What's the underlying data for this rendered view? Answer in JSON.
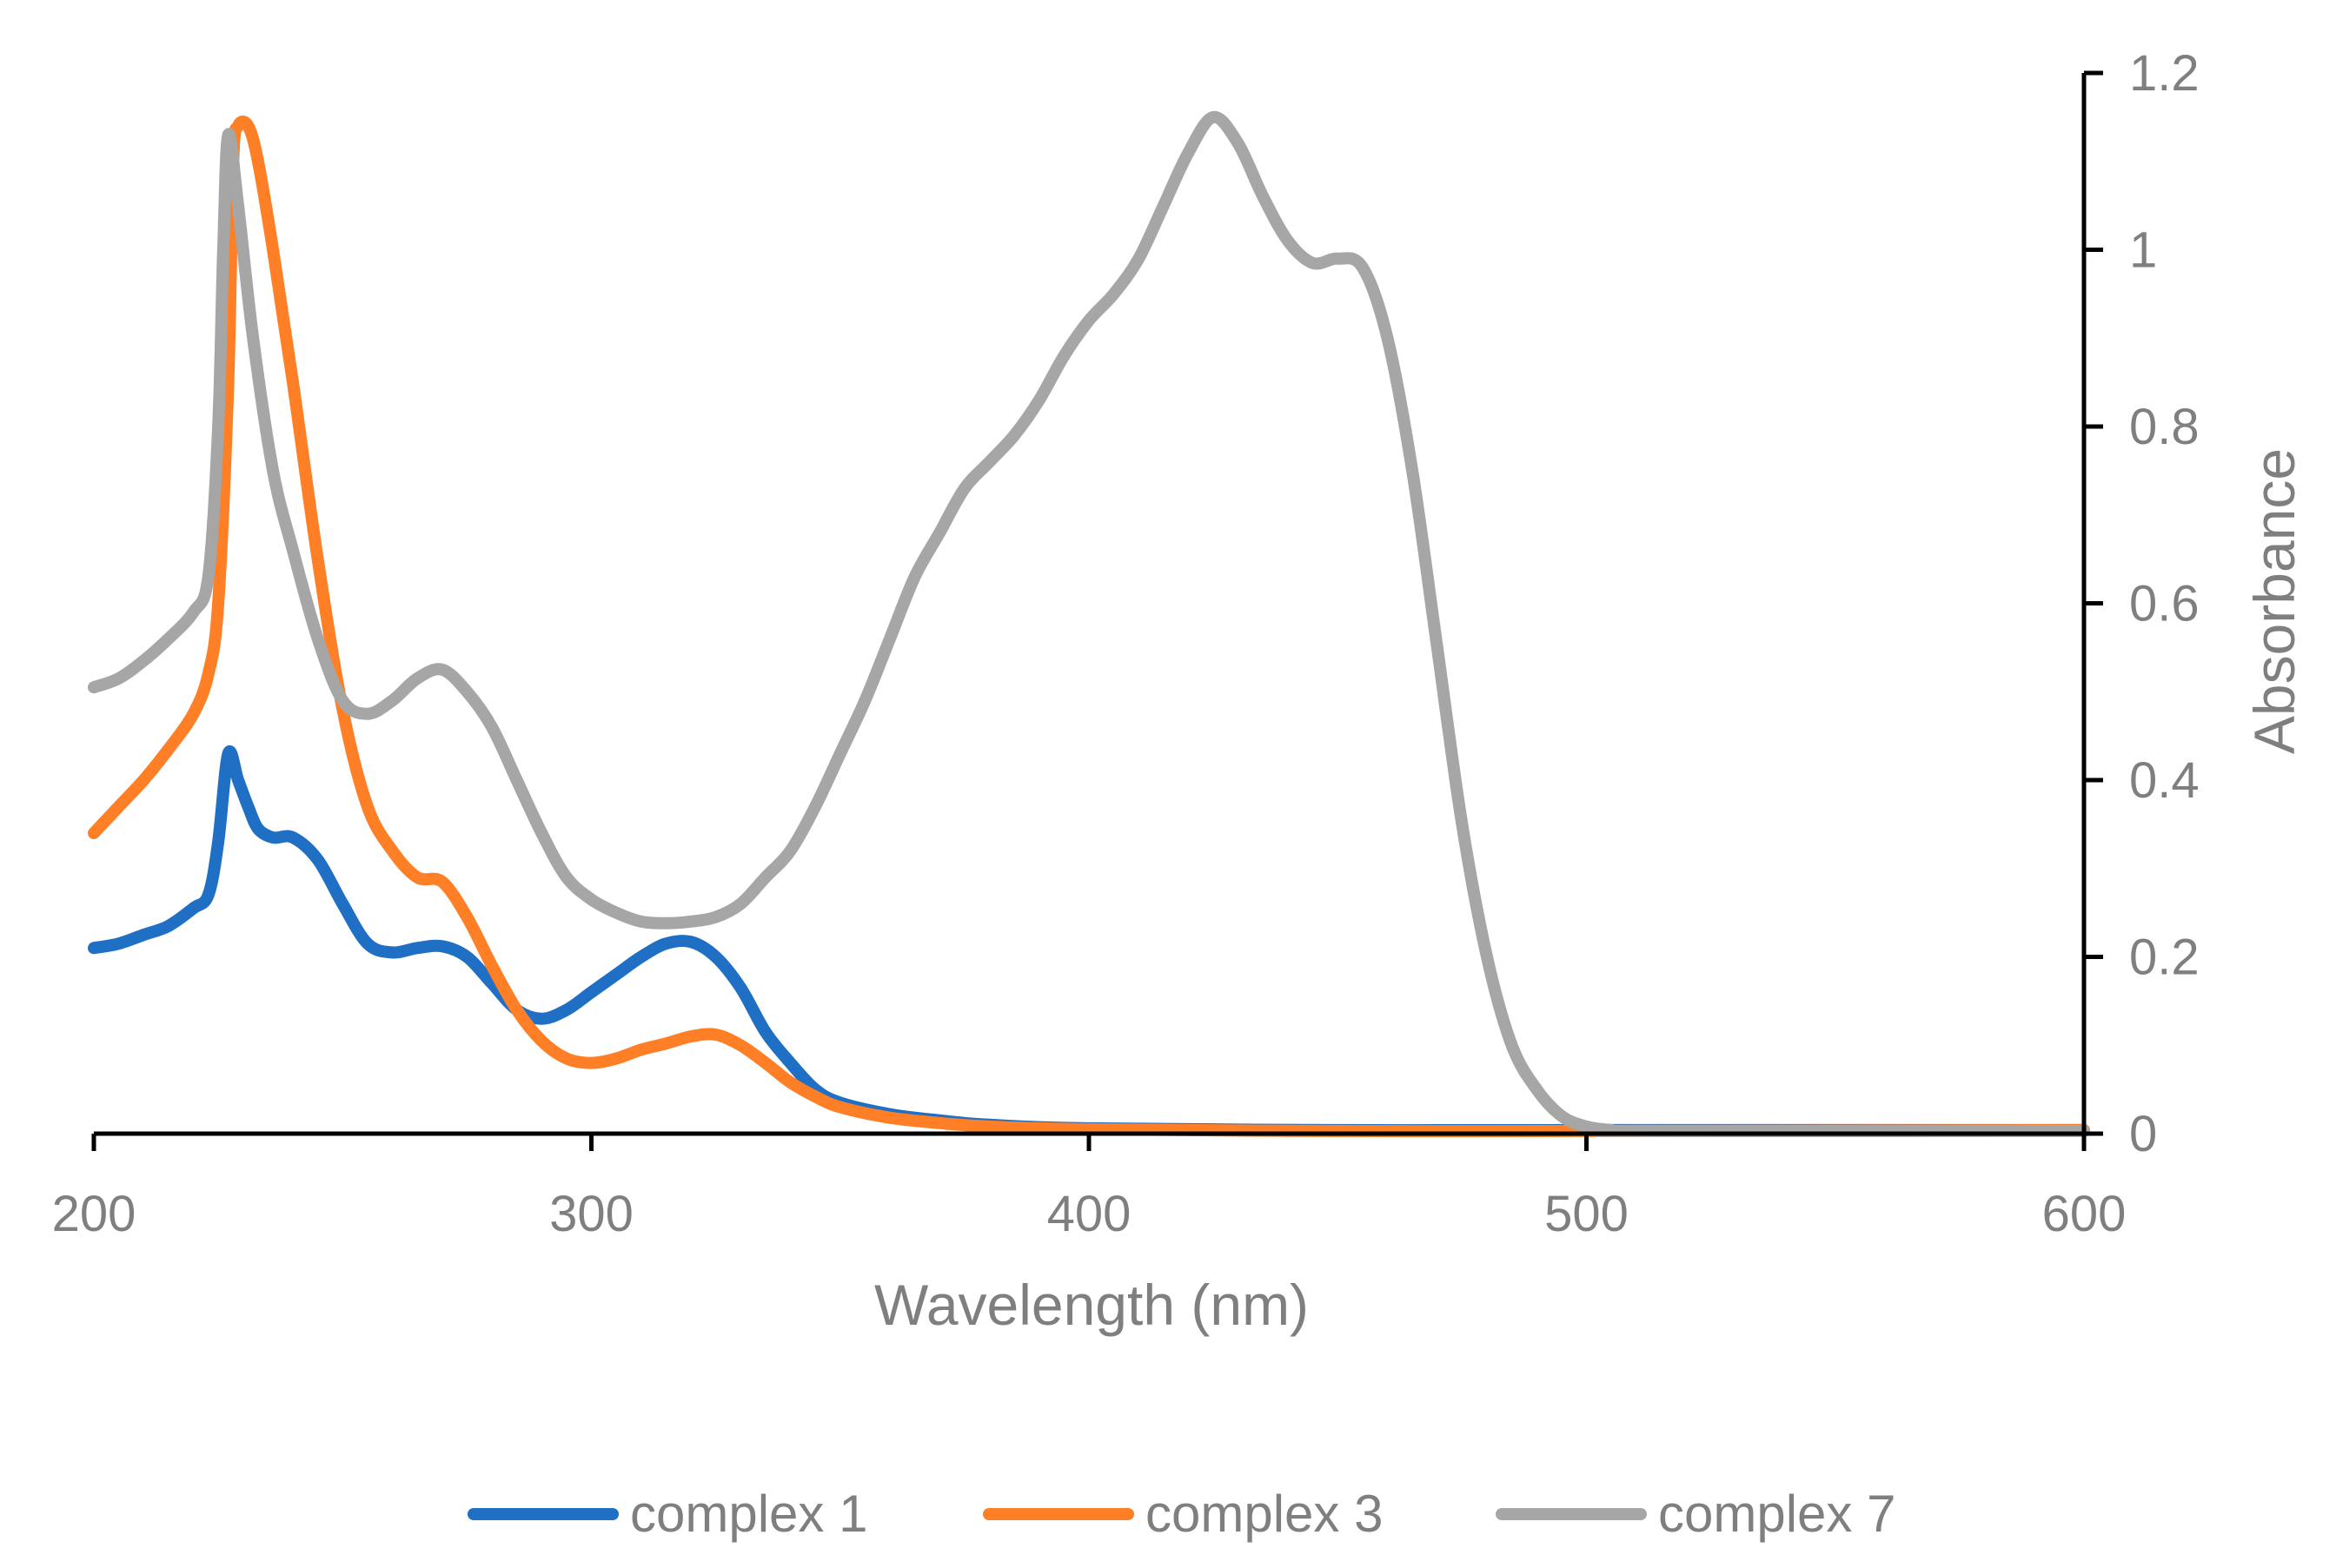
{
  "chart_data": {
    "type": "line",
    "title": "",
    "xlabel": "Wavelength (nm)",
    "ylabel": "Absorbance",
    "xlim": [
      200,
      600
    ],
    "ylim": [
      0,
      1.2
    ],
    "x_ticks": [
      "200",
      "300",
      "400",
      "500",
      "600"
    ],
    "y_ticks": [
      "0",
      "0.2",
      "0.4",
      "0.6",
      "0.8",
      "1",
      "1.2"
    ],
    "y_axis_side": "right",
    "legend_position": "bottom",
    "series": [
      {
        "name": "complex 1",
        "color": "#1f6fc5",
        "points": [
          [
            200,
            0.21
          ],
          [
            205,
            0.215
          ],
          [
            210,
            0.225
          ],
          [
            215,
            0.235
          ],
          [
            220,
            0.255
          ],
          [
            223,
            0.27
          ],
          [
            225,
            0.33
          ],
          [
            227,
            0.43
          ],
          [
            229,
            0.4
          ],
          [
            231,
            0.37
          ],
          [
            233,
            0.345
          ],
          [
            236,
            0.335
          ],
          [
            240,
            0.335
          ],
          [
            245,
            0.31
          ],
          [
            250,
            0.26
          ],
          [
            255,
            0.215
          ],
          [
            260,
            0.205
          ],
          [
            265,
            0.21
          ],
          [
            270,
            0.212
          ],
          [
            275,
            0.2
          ],
          [
            280,
            0.17
          ],
          [
            285,
            0.14
          ],
          [
            290,
            0.13
          ],
          [
            295,
            0.14
          ],
          [
            300,
            0.16
          ],
          [
            305,
            0.18
          ],
          [
            310,
            0.2
          ],
          [
            315,
            0.215
          ],
          [
            320,
            0.217
          ],
          [
            325,
            0.2
          ],
          [
            330,
            0.165
          ],
          [
            335,
            0.115
          ],
          [
            340,
            0.08
          ],
          [
            345,
            0.05
          ],
          [
            350,
            0.035
          ],
          [
            360,
            0.022
          ],
          [
            370,
            0.015
          ],
          [
            380,
            0.01
          ],
          [
            400,
            0.006
          ],
          [
            450,
            0.004
          ],
          [
            500,
            0.004
          ],
          [
            600,
            0.004
          ]
        ]
      },
      {
        "name": "complex 3",
        "color": "#ff7f27",
        "points": [
          [
            200,
            0.34
          ],
          [
            205,
            0.37
          ],
          [
            210,
            0.4
          ],
          [
            215,
            0.435
          ],
          [
            220,
            0.475
          ],
          [
            223,
            0.52
          ],
          [
            225,
            0.6
          ],
          [
            227,
            0.85
          ],
          [
            228,
            1.1
          ],
          [
            229,
            1.14
          ],
          [
            231,
            1.14
          ],
          [
            233,
            1.1
          ],
          [
            236,
            1.0
          ],
          [
            240,
            0.85
          ],
          [
            245,
            0.65
          ],
          [
            250,
            0.48
          ],
          [
            255,
            0.37
          ],
          [
            260,
            0.32
          ],
          [
            265,
            0.29
          ],
          [
            270,
            0.285
          ],
          [
            275,
            0.245
          ],
          [
            280,
            0.19
          ],
          [
            285,
            0.14
          ],
          [
            290,
            0.105
          ],
          [
            295,
            0.085
          ],
          [
            300,
            0.08
          ],
          [
            305,
            0.085
          ],
          [
            310,
            0.095
          ],
          [
            315,
            0.102
          ],
          [
            320,
            0.11
          ],
          [
            325,
            0.112
          ],
          [
            330,
            0.1
          ],
          [
            335,
            0.08
          ],
          [
            340,
            0.058
          ],
          [
            345,
            0.042
          ],
          [
            350,
            0.03
          ],
          [
            360,
            0.018
          ],
          [
            370,
            0.012
          ],
          [
            380,
            0.008
          ],
          [
            400,
            0.005
          ],
          [
            450,
            0.003
          ],
          [
            500,
            0.003
          ],
          [
            600,
            0.004
          ]
        ]
      },
      {
        "name": "complex 7",
        "color": "#a6a6a6",
        "points": [
          [
            200,
            0.505
          ],
          [
            205,
            0.515
          ],
          [
            210,
            0.535
          ],
          [
            215,
            0.56
          ],
          [
            220,
            0.59
          ],
          [
            223,
            0.63
          ],
          [
            225,
            0.8
          ],
          [
            226,
            1.0
          ],
          [
            227,
            1.13
          ],
          [
            229,
            1.05
          ],
          [
            232,
            0.9
          ],
          [
            236,
            0.75
          ],
          [
            240,
            0.66
          ],
          [
            245,
            0.56
          ],
          [
            250,
            0.49
          ],
          [
            255,
            0.475
          ],
          [
            260,
            0.49
          ],
          [
            265,
            0.515
          ],
          [
            270,
            0.525
          ],
          [
            275,
            0.5
          ],
          [
            280,
            0.46
          ],
          [
            285,
            0.4
          ],
          [
            290,
            0.34
          ],
          [
            295,
            0.29
          ],
          [
            300,
            0.265
          ],
          [
            305,
            0.25
          ],
          [
            310,
            0.24
          ],
          [
            315,
            0.238
          ],
          [
            320,
            0.24
          ],
          [
            325,
            0.245
          ],
          [
            330,
            0.26
          ],
          [
            335,
            0.29
          ],
          [
            340,
            0.32
          ],
          [
            345,
            0.37
          ],
          [
            350,
            0.43
          ],
          [
            355,
            0.49
          ],
          [
            360,
            0.56
          ],
          [
            365,
            0.63
          ],
          [
            370,
            0.68
          ],
          [
            375,
            0.73
          ],
          [
            380,
            0.76
          ],
          [
            385,
            0.79
          ],
          [
            390,
            0.83
          ],
          [
            395,
            0.88
          ],
          [
            400,
            0.92
          ],
          [
            405,
            0.95
          ],
          [
            410,
            0.99
          ],
          [
            415,
            1.05
          ],
          [
            420,
            1.11
          ],
          [
            425,
            1.15
          ],
          [
            430,
            1.12
          ],
          [
            435,
            1.06
          ],
          [
            440,
            1.01
          ],
          [
            445,
            0.985
          ],
          [
            450,
            0.99
          ],
          [
            455,
            0.98
          ],
          [
            460,
            0.9
          ],
          [
            465,
            0.75
          ],
          [
            470,
            0.55
          ],
          [
            475,
            0.35
          ],
          [
            480,
            0.2
          ],
          [
            485,
            0.1
          ],
          [
            490,
            0.05
          ],
          [
            495,
            0.02
          ],
          [
            500,
            0.008
          ],
          [
            505,
            0.004
          ],
          [
            510,
            0.003
          ],
          [
            600,
            0.003
          ]
        ]
      }
    ]
  }
}
